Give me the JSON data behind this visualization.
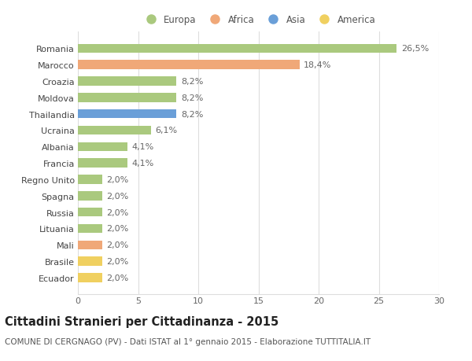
{
  "countries": [
    "Romania",
    "Marocco",
    "Croazia",
    "Moldova",
    "Thailandia",
    "Ucraina",
    "Albania",
    "Francia",
    "Regno Unito",
    "Spagna",
    "Russia",
    "Lituania",
    "Mali",
    "Brasile",
    "Ecuador"
  ],
  "values": [
    26.5,
    18.4,
    8.2,
    8.2,
    8.2,
    6.1,
    4.1,
    4.1,
    2.0,
    2.0,
    2.0,
    2.0,
    2.0,
    2.0,
    2.0
  ],
  "labels": [
    "26,5%",
    "18,4%",
    "8,2%",
    "8,2%",
    "8,2%",
    "6,1%",
    "4,1%",
    "4,1%",
    "2,0%",
    "2,0%",
    "2,0%",
    "2,0%",
    "2,0%",
    "2,0%",
    "2,0%"
  ],
  "continents": [
    "Europa",
    "Africa",
    "Europa",
    "Europa",
    "Asia",
    "Europa",
    "Europa",
    "Europa",
    "Europa",
    "Europa",
    "Europa",
    "Europa",
    "Africa",
    "America",
    "America"
  ],
  "colors": {
    "Europa": "#aac97e",
    "Africa": "#f0a878",
    "Asia": "#6a9fd8",
    "America": "#f0d060"
  },
  "title": "Cittadini Stranieri per Cittadinanza - 2015",
  "subtitle": "COMUNE DI CERGNAGO (PV) - Dati ISTAT al 1° gennaio 2015 - Elaborazione TUTTITALIA.IT",
  "xlim": [
    0,
    30
  ],
  "xticks": [
    0,
    5,
    10,
    15,
    20,
    25,
    30
  ],
  "background_color": "#ffffff",
  "grid_color": "#dddddd",
  "bar_height": 0.55,
  "label_fontsize": 8,
  "tick_fontsize": 8,
  "title_fontsize": 10.5,
  "subtitle_fontsize": 7.5,
  "legend_labels": [
    "Europa",
    "Africa",
    "Asia",
    "America"
  ]
}
